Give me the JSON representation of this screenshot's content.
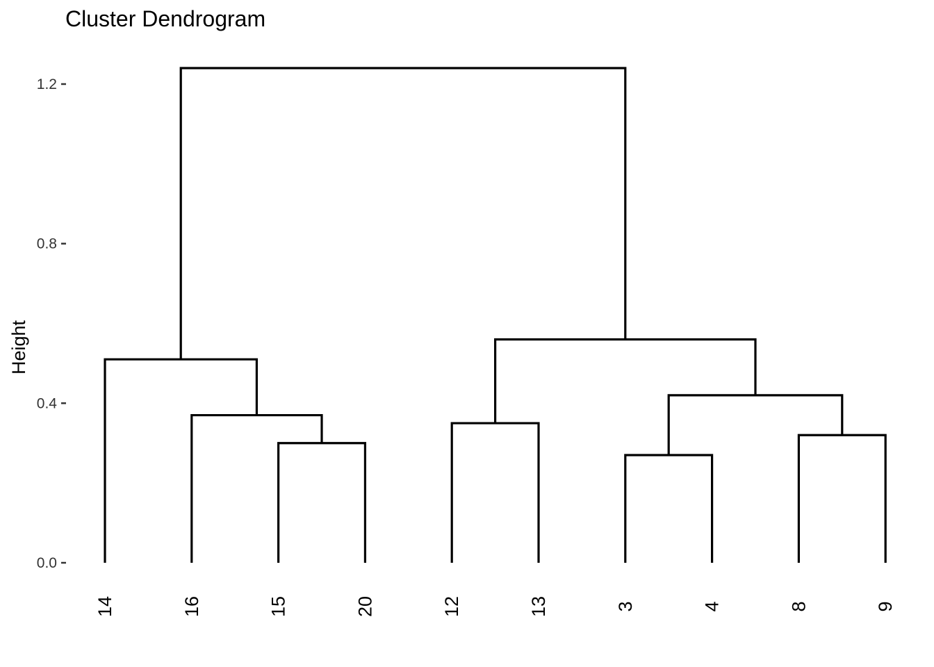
{
  "chart_data": {
    "type": "dendrogram",
    "title": "Cluster Dendrogram",
    "ylabel": "Height",
    "xlabel": "",
    "ylim": [
      0,
      1.2
    ],
    "yticks": [
      0.0,
      0.4,
      0.8,
      1.2
    ],
    "ytick_labels": [
      "0.0",
      "0.4",
      "0.8",
      "1.2"
    ],
    "leaves": [
      "14",
      "16",
      "15",
      "20",
      "12",
      "13",
      "3",
      "4",
      "8",
      "9"
    ],
    "merges": [
      {
        "left": "15",
        "right": "20",
        "height": 0.3
      },
      {
        "left": "16",
        "right": "m1",
        "height": 0.37
      },
      {
        "left": "14",
        "right": "m2",
        "height": 0.51
      },
      {
        "left": "12",
        "right": "13",
        "height": 0.35
      },
      {
        "left": "3",
        "right": "4",
        "height": 0.27
      },
      {
        "left": "8",
        "right": "9",
        "height": 0.32
      },
      {
        "left": "m5",
        "right": "m6",
        "height": 0.42
      },
      {
        "left": "m4",
        "right": "m7",
        "height": 0.56
      },
      {
        "left": "m3",
        "right": "m8",
        "height": 1.24
      }
    ],
    "line_color": "#000000",
    "grid": false,
    "legend": "none"
  }
}
